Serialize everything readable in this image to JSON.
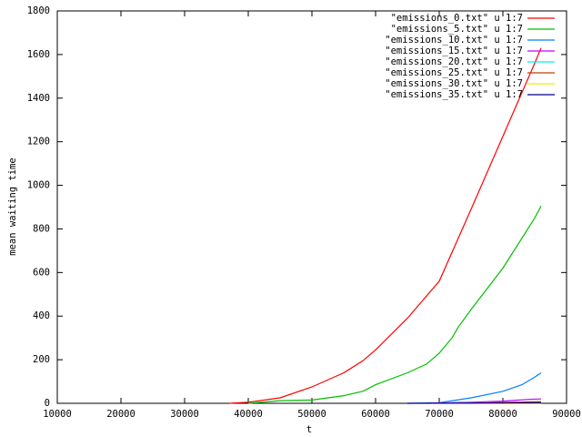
{
  "chart_data": {
    "type": "line",
    "xlabel": "t",
    "ylabel": "mean waiting time",
    "xlim": [
      10000,
      90000
    ],
    "xticks": [
      10000,
      20000,
      30000,
      40000,
      50000,
      60000,
      70000,
      80000,
      90000
    ],
    "ylim": [
      0,
      1800
    ],
    "yticks": [
      0,
      200,
      400,
      600,
      800,
      1000,
      1200,
      1400,
      1600,
      1800
    ],
    "grid": false,
    "legend": "top-right",
    "series": [
      {
        "name": "\"emissions_0.txt\" u 1:7",
        "color": "#ff0000",
        "x": [
          37000,
          40000,
          45000,
          50000,
          55000,
          58000,
          60000,
          65000,
          70000,
          75000,
          80000,
          85000,
          86000
        ],
        "values": [
          0,
          5,
          25,
          75,
          140,
          195,
          245,
          390,
          560,
          890,
          1225,
          1560,
          1630
        ]
      },
      {
        "name": "\"emissions_5.txt\" u 1:7",
        "color": "#00c000",
        "x": [
          40000,
          45000,
          50000,
          55000,
          58000,
          60000,
          65000,
          68000,
          70000,
          72000,
          73000,
          75000,
          80000,
          85000,
          86000
        ],
        "values": [
          0,
          12,
          15,
          35,
          55,
          85,
          140,
          180,
          230,
          300,
          350,
          430,
          620,
          850,
          905
        ]
      },
      {
        "name": "\"emissions_10.txt\" u 1:7",
        "color": "#0080ff",
        "x": [
          65000,
          70000,
          75000,
          80000,
          83000,
          85000,
          86000
        ],
        "values": [
          0,
          3,
          25,
          55,
          85,
          120,
          140
        ]
      },
      {
        "name": "\"emissions_15.txt\" u 1:7",
        "color": "#c000ff",
        "x": [
          68000,
          75000,
          80000,
          84000,
          86000
        ],
        "values": [
          0,
          5,
          10,
          18,
          20
        ]
      },
      {
        "name": "\"emissions_20.txt\" u 1:7",
        "color": "#00eeee",
        "x": [
          70000,
          80000,
          86000
        ],
        "values": [
          0,
          3,
          5
        ]
      },
      {
        "name": "\"emissions_25.txt\" u 1:7",
        "color": "#c04000",
        "x": [
          75000,
          80000,
          86000
        ],
        "values": [
          0,
          4,
          8
        ]
      },
      {
        "name": "\"emissions_30.txt\" u 1:7",
        "color": "#eeee00",
        "x": [
          75000,
          86000
        ],
        "values": [
          0,
          0
        ]
      },
      {
        "name": "\"emissions_35.txt\" u 1:7",
        "color": "#000080",
        "x": [
          65000,
          86000
        ],
        "values": [
          0,
          2
        ]
      }
    ]
  }
}
